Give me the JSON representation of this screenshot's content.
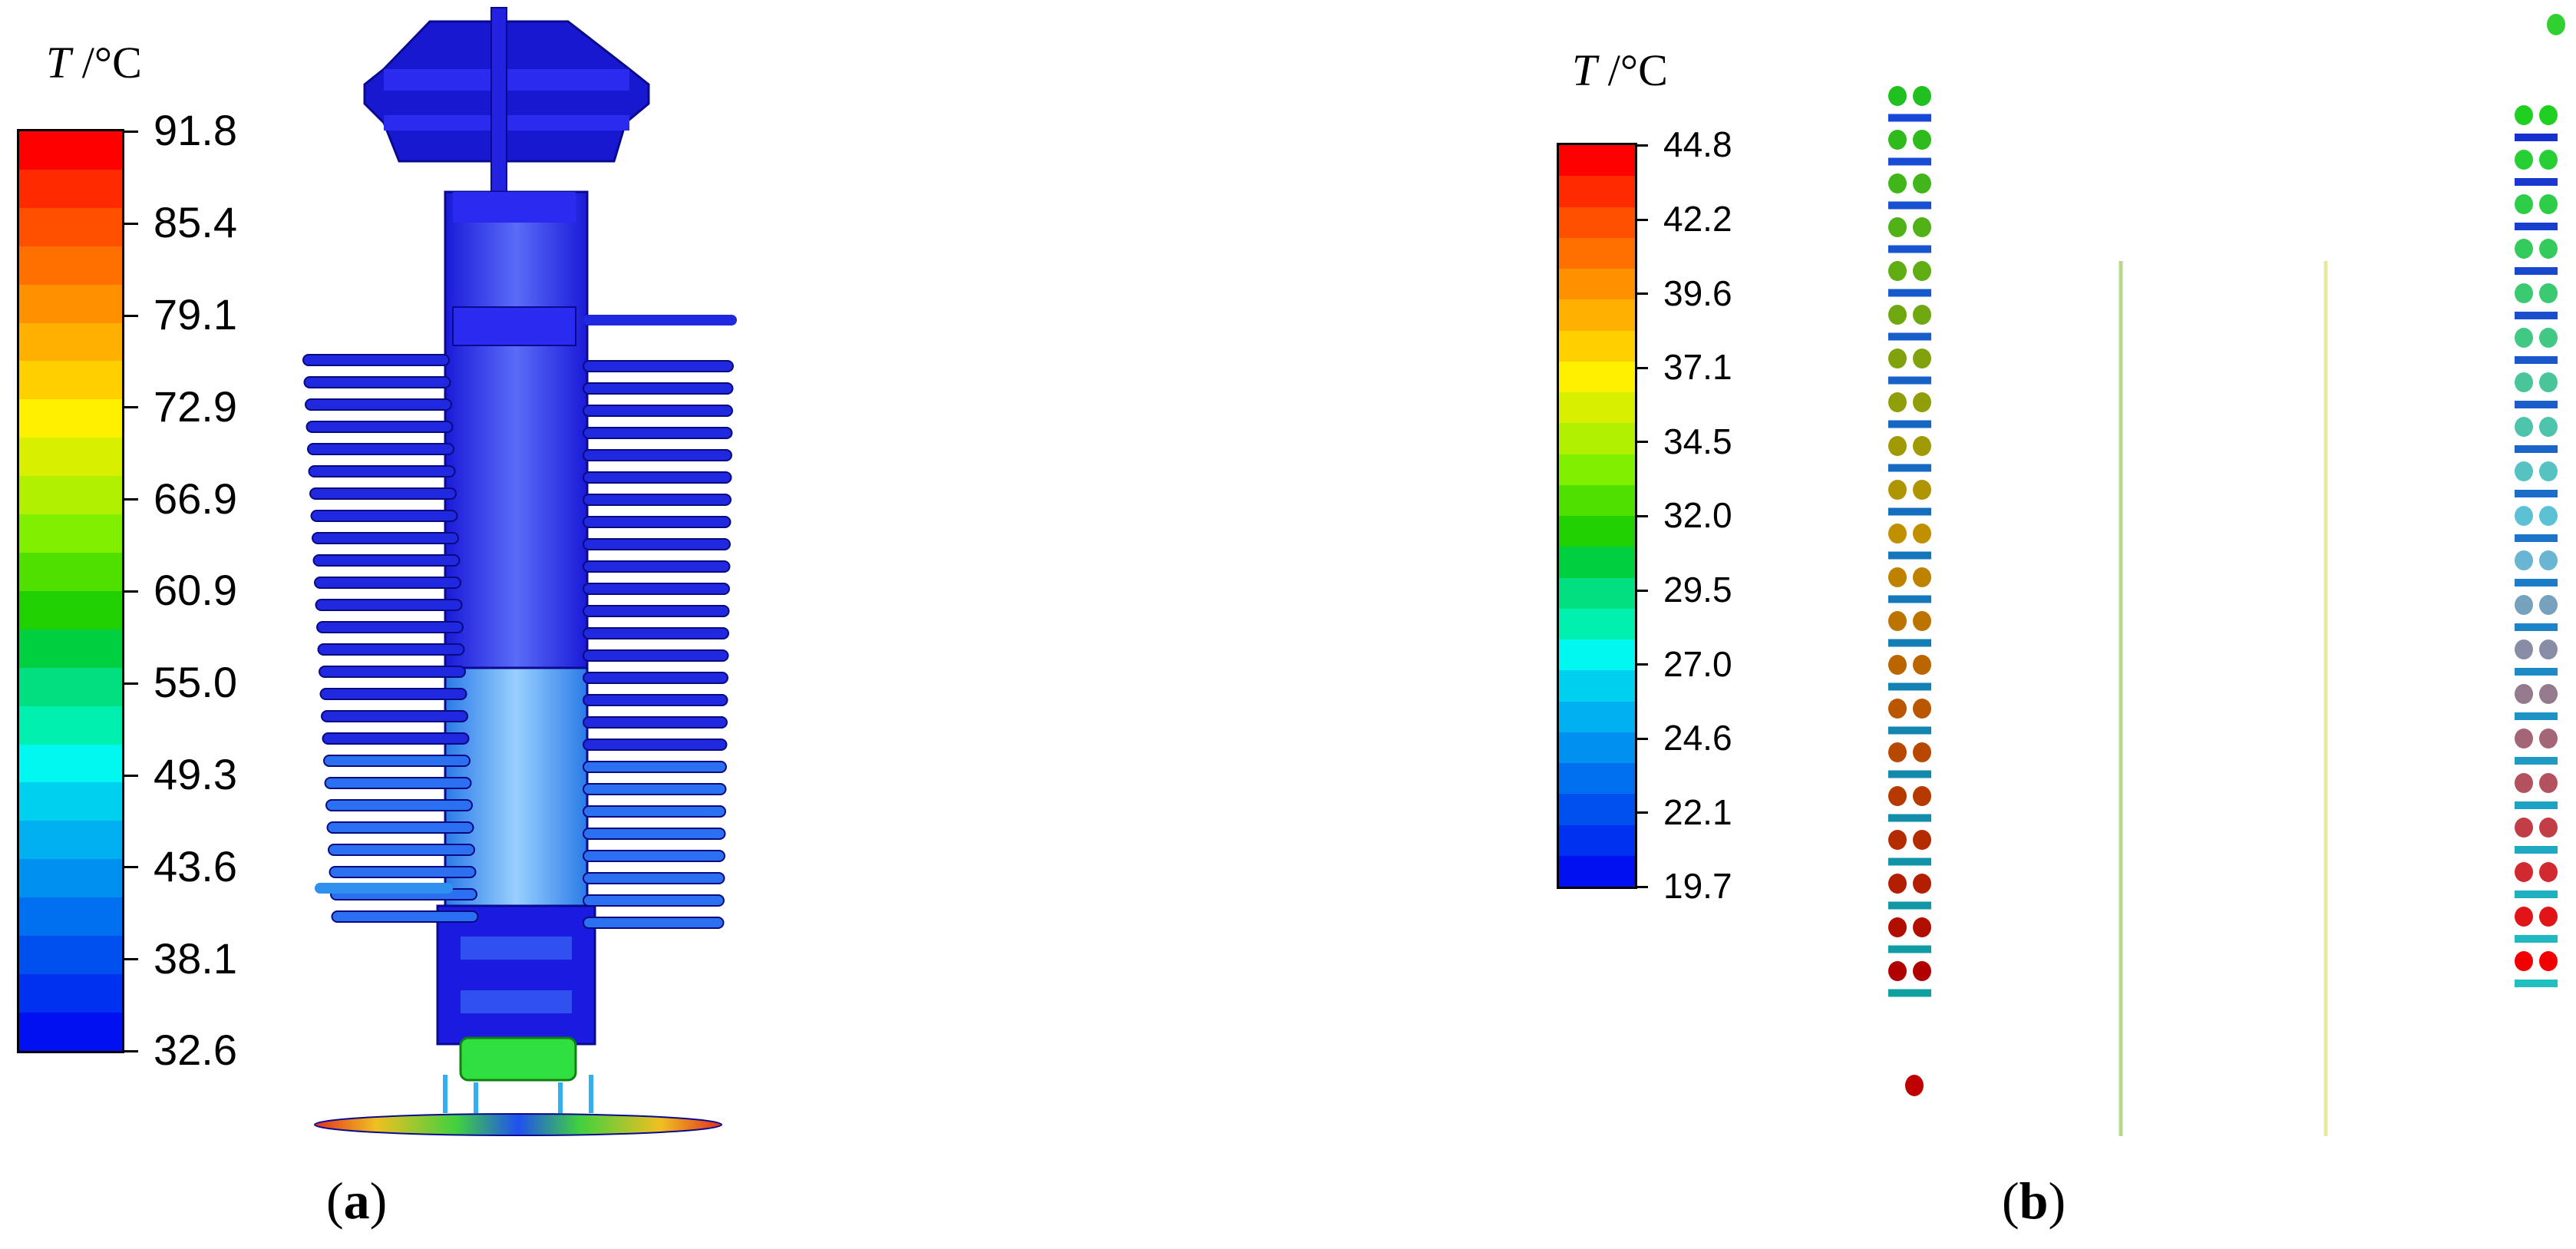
{
  "panel_a": {
    "label": "a",
    "scale_symbol": "T",
    "scale_unit": "/°C",
    "ticks": [
      "91.8",
      "85.4",
      "79.1",
      "72.9",
      "66.9",
      "60.9",
      "55.0",
      "49.3",
      "43.6",
      "38.1",
      "32.6"
    ]
  },
  "panel_b": {
    "label": "b",
    "scale_symbol": "T",
    "scale_unit": "/°C",
    "ticks": [
      "44.8",
      "42.2",
      "39.6",
      "37.1",
      "34.5",
      "32.0",
      "29.5",
      "27.0",
      "24.6",
      "22.1",
      "19.7"
    ]
  },
  "colorbar_colors": [
    "#ff0000",
    "#ff2a00",
    "#ff5000",
    "#ff7000",
    "#ff9000",
    "#ffb000",
    "#ffd000",
    "#fff000",
    "#d8f000",
    "#b0f000",
    "#80f000",
    "#50e000",
    "#20d000",
    "#00d040",
    "#00e080",
    "#00f0b0",
    "#00f8f0",
    "#00d0f0",
    "#00b0f0",
    "#0090f0",
    "#0070f0",
    "#0050f0",
    "#0030f0",
    "#0010f0"
  ]
}
